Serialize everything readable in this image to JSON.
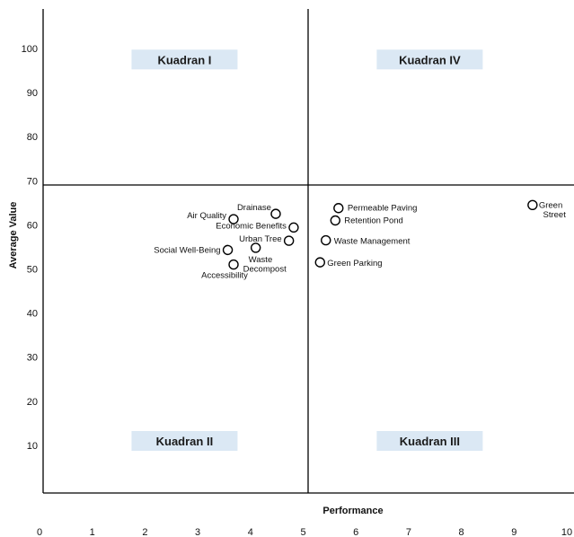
{
  "chart_data": {
    "type": "scatter",
    "xlabel": "Performance",
    "ylabel": "Average Value",
    "xlim": [
      0,
      10
    ],
    "ylim": [
      0,
      108
    ],
    "x_ticks": [
      0,
      1,
      2,
      3,
      4,
      5,
      6,
      7,
      8,
      9,
      10
    ],
    "y_ticks": [
      10,
      20,
      30,
      40,
      50,
      60,
      70,
      80,
      90,
      100
    ],
    "divider_x": 5,
    "divider_y": 69,
    "quadrant_box_color": "#dbe8f4",
    "quadrants": [
      {
        "label": "Kuadran I",
        "x": 2.75,
        "y": 97.5
      },
      {
        "label": "Kuadran IV",
        "x": 7.4,
        "y": 97.5
      },
      {
        "label": "Kuadran II",
        "x": 2.75,
        "y": 11
      },
      {
        "label": "Kuadran III",
        "x": 7.4,
        "y": 11
      }
    ],
    "points": [
      {
        "label": "Drainase",
        "x": 4.48,
        "y": 62.5
      },
      {
        "label": "Air Quality",
        "x": 3.68,
        "y": 61.3
      },
      {
        "label": "Economic Benefits",
        "x": 4.82,
        "y": 59.4
      },
      {
        "label": "Urban Tree",
        "x": 4.73,
        "y": 56.4
      },
      {
        "label": "Social Well-Being",
        "x": 3.57,
        "y": 54.3
      },
      {
        "label": "Waste Decompost",
        "x": 4.1,
        "y": 54.8
      },
      {
        "label": "Accessibility",
        "x": 3.68,
        "y": 51.0
      },
      {
        "label": "Permeable Paving",
        "x": 5.67,
        "y": 63.8
      },
      {
        "label": "Retention Pond",
        "x": 5.61,
        "y": 61.0
      },
      {
        "label": "Waste Management",
        "x": 5.43,
        "y": 56.5
      },
      {
        "label": "Green Parking",
        "x": 5.32,
        "y": 51.5
      },
      {
        "label": "Green Street",
        "x": 9.35,
        "y": 64.5
      }
    ]
  }
}
